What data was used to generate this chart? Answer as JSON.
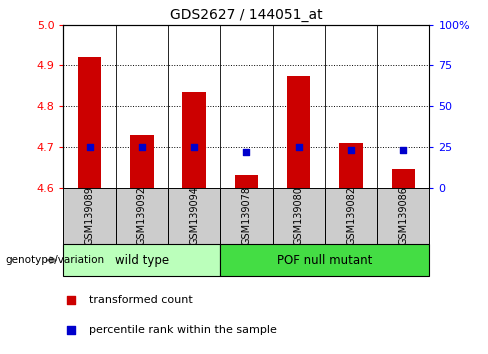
{
  "title": "GDS2627 / 144051_at",
  "samples": [
    "GSM139089",
    "GSM139092",
    "GSM139094",
    "GSM139078",
    "GSM139080",
    "GSM139082",
    "GSM139086"
  ],
  "transformed_count": [
    4.92,
    4.73,
    4.835,
    4.63,
    4.875,
    4.71,
    4.645
  ],
  "percentile_rank_pct": [
    25,
    25,
    25,
    22,
    25,
    23,
    23
  ],
  "groups": [
    {
      "label": "wild type",
      "indices": [
        0,
        1,
        2
      ],
      "color": "#bbffbb"
    },
    {
      "label": "POF null mutant",
      "indices": [
        3,
        4,
        5,
        6
      ],
      "color": "#44dd44"
    }
  ],
  "ylim_left": [
    4.6,
    5.0
  ],
  "yticks_left": [
    4.6,
    4.7,
    4.8,
    4.9,
    5.0
  ],
  "ytick_labels_right": [
    "0",
    "25",
    "50",
    "75",
    "100%"
  ],
  "yticks_right_pct": [
    0,
    25,
    50,
    75,
    100
  ],
  "grid_lines": [
    4.7,
    4.8,
    4.9
  ],
  "bar_color": "#cc0000",
  "dot_color": "#0000cc",
  "bar_bottom": 4.6,
  "bar_width": 0.45,
  "dot_size": 25,
  "legend_transformed": "transformed count",
  "legend_percentile": "percentile rank within the sample",
  "genotype_label": "genotype/variation",
  "sample_box_color": "#cccccc",
  "figure_bg": "#ffffff"
}
